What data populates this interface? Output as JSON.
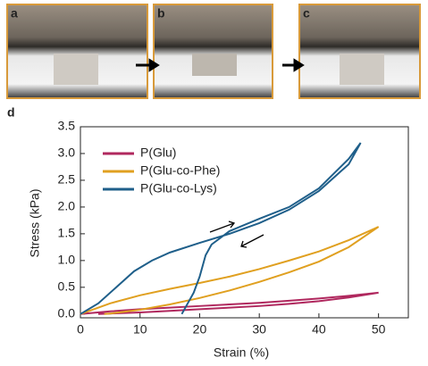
{
  "panels": [
    "a",
    "b",
    "c"
  ],
  "chart_label": "d",
  "chart_data": {
    "type": "line",
    "x_label": "Strain (%)",
    "y_label": "Stress (kPa)",
    "xlim": [
      0,
      55
    ],
    "xticks": [
      0,
      10,
      20,
      30,
      40,
      50
    ],
    "ylim": [
      -0.07,
      3.5
    ],
    "yticks": [
      {
        "value": 0,
        "label": "0.0"
      },
      0.5,
      {
        "value": 1,
        "label": "1.0"
      },
      1.5,
      {
        "value": 2,
        "label": "2.0"
      },
      2.5,
      {
        "value": 3,
        "label": "3.0"
      },
      3.5
    ],
    "legend": "upper left",
    "series": [
      {
        "name": "P(Glu)",
        "color": "#b0285e",
        "x": [
          0,
          5,
          10,
          15,
          20,
          25,
          30,
          35,
          40,
          45,
          50,
          45,
          40,
          35,
          30,
          25,
          20,
          15,
          10,
          5,
          3
        ],
        "values": [
          0,
          0.05,
          0.09,
          0.12,
          0.15,
          0.18,
          0.21,
          0.25,
          0.29,
          0.34,
          0.4,
          0.31,
          0.24,
          0.19,
          0.15,
          0.12,
          0.09,
          0.06,
          0.03,
          0.01,
          0
        ]
      },
      {
        "name": "P(Glu-co-Phe)",
        "color": "#e0a020",
        "x": [
          0,
          5,
          10,
          15,
          20,
          25,
          30,
          35,
          40,
          45,
          50,
          45,
          40,
          35,
          30,
          25,
          20,
          15,
          10,
          5,
          4
        ],
        "values": [
          0,
          0.2,
          0.35,
          0.47,
          0.58,
          0.7,
          0.84,
          1.0,
          1.17,
          1.38,
          1.63,
          1.25,
          0.98,
          0.78,
          0.6,
          0.44,
          0.3,
          0.18,
          0.08,
          0.01,
          0
        ]
      },
      {
        "name": "P(Glu-co-Lys)",
        "color": "#1f5f8a",
        "x": [
          0,
          3,
          6,
          9,
          12,
          15,
          20,
          25,
          30,
          35,
          40,
          45,
          47,
          45,
          40,
          35,
          30,
          25,
          22,
          21,
          20,
          19,
          18,
          17
        ],
        "values": [
          0,
          0.2,
          0.5,
          0.8,
          1.0,
          1.15,
          1.33,
          1.5,
          1.7,
          1.95,
          2.3,
          2.8,
          3.2,
          2.9,
          2.35,
          2.0,
          1.78,
          1.55,
          1.3,
          1.1,
          0.7,
          0.4,
          0.2,
          0
        ]
      }
    ]
  }
}
